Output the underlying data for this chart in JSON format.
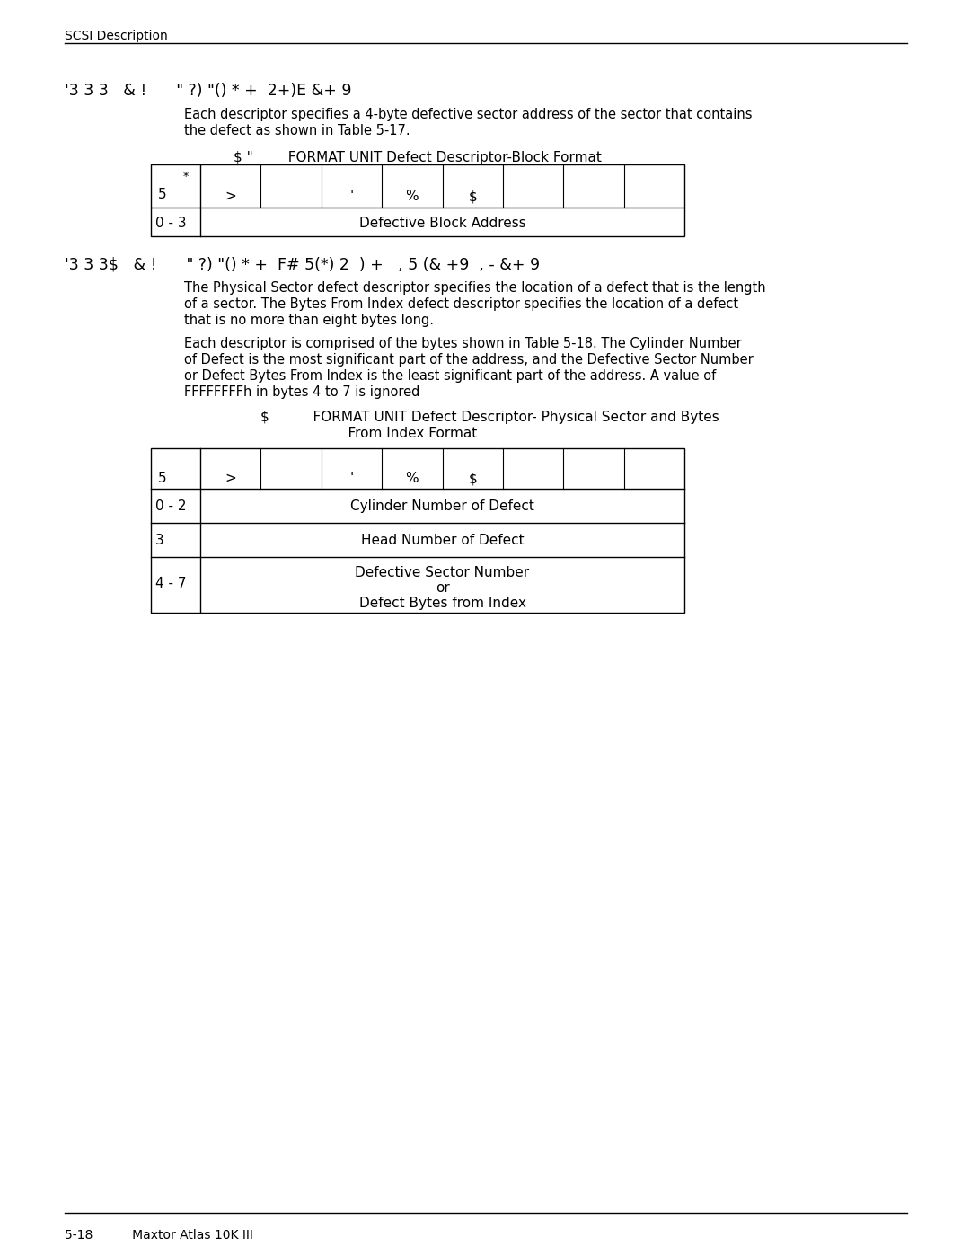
{
  "bg_color": "#ffffff",
  "header_text": "SCSI Description",
  "footer_text": "5-18          Maxtor Atlas 10K III",
  "section1_heading": "'3 3 3   & !      \" ?) \"() * +  2+)E &+ 9",
  "section2_heading": "'3 3 3$   & !      \" ?) \"() * +  F# 5(*) 2  ) +   , 5 (& +9  , - &+ 9",
  "table1_title": "$ \"        FORMAT UNIT Defect Descriptor-Block Format",
  "table1_row1_col0": "0 - 3",
  "table1_row1_content": "Defective Block Address",
  "table2_title_line1": "$          FORMAT UNIT Defect Descriptor- Physical Sector and Bytes",
  "table2_title_line2": "From Index Format",
  "table2_row1_col0": "0 - 2",
  "table2_row1_content": "Cylinder Number of Defect",
  "table2_row2_col0": "3",
  "table2_row2_content": "Head Number of Defect",
  "table2_row3_col0": "4 - 7",
  "table2_row3_line1": "Defective Sector Number",
  "table2_row3_line2": "or",
  "table2_row3_line3": "Defect Bytes from Index",
  "header_col_labels": [
    "*",
    ">",
    "",
    "'",
    "%",
    "$",
    "",
    "",
    ""
  ],
  "font_size_heading": 12.5,
  "font_size_body": 10.5,
  "font_size_table": 11,
  "font_size_header": 10,
  "font_size_footer": 10
}
